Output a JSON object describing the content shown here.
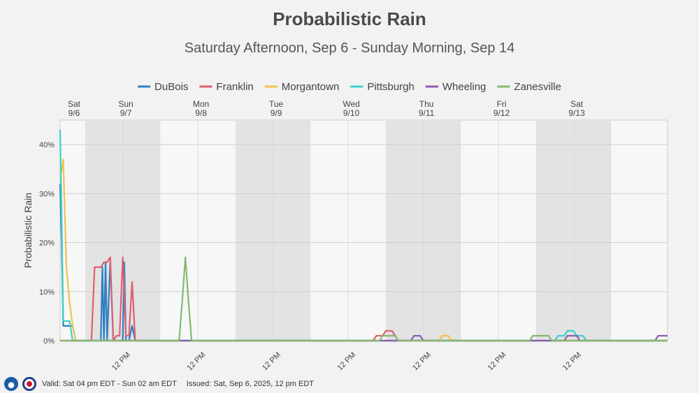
{
  "header": {
    "title": "Probabilistic Rain",
    "subtitle": "Saturday Afternoon, Sep 6 - Sunday Morning, Sep 14"
  },
  "footer": {
    "valid": "Valid: Sat 04 pm EDT - Sun 02 am EDT",
    "issued": "Issued: Sat, Sep 6, 2025, 12 pm EDT"
  },
  "chart_data": {
    "type": "line",
    "ylabel": "Probabilistic Rain",
    "ylim": [
      0,
      45
    ],
    "yticks": [
      0,
      10,
      20,
      30,
      40
    ],
    "ytick_labels": [
      "0%",
      "10%",
      "20%",
      "30%",
      "40%"
    ],
    "x_unit": "hours after Sat 9/6 12 AM EDT",
    "xlim": [
      16,
      210
    ],
    "days": [
      {
        "weekday": "Sat",
        "date": "9/6",
        "center": 16
      },
      {
        "weekday": "Sun",
        "date": "9/7",
        "center": 37
      },
      {
        "weekday": "Mon",
        "date": "9/8",
        "center": 61
      },
      {
        "weekday": "Tue",
        "date": "9/9",
        "center": 85
      },
      {
        "weekday": "Wed",
        "date": "9/10",
        "center": 109
      },
      {
        "weekday": "Thu",
        "date": "9/11",
        "center": 133
      },
      {
        "weekday": "Fri",
        "date": "9/12",
        "center": 157
      },
      {
        "weekday": "Sat",
        "date": "9/13",
        "center": 181
      }
    ],
    "night_bands": [
      [
        24,
        48
      ],
      [
        72,
        96
      ],
      [
        120,
        144
      ],
      [
        168,
        192
      ]
    ],
    "xtick_positions": [
      36,
      60,
      84,
      108,
      132,
      156,
      180
    ],
    "xtick_label": "12 PM",
    "grid": true,
    "legend_position": "top",
    "series": [
      {
        "name": "DuBois",
        "color": "#2f7fc1",
        "points": [
          [
            16,
            32
          ],
          [
            16.5,
            20
          ],
          [
            17,
            3
          ],
          [
            18,
            3
          ],
          [
            19,
            3
          ],
          [
            20,
            3
          ],
          [
            21,
            0
          ],
          [
            26,
            0
          ],
          [
            27,
            0
          ],
          [
            28,
            0
          ],
          [
            29,
            0
          ],
          [
            29.5,
            15
          ],
          [
            30,
            0
          ],
          [
            30.5,
            16
          ],
          [
            31,
            0
          ],
          [
            32,
            16
          ],
          [
            33,
            0
          ],
          [
            36,
            0
          ],
          [
            36.5,
            16
          ],
          [
            37,
            0
          ],
          [
            38,
            0
          ],
          [
            39,
            3
          ],
          [
            40,
            0
          ],
          [
            210,
            0
          ]
        ]
      },
      {
        "name": "Franklin",
        "color": "#e06070",
        "points": [
          [
            16,
            0
          ],
          [
            26,
            0
          ],
          [
            27,
            15
          ],
          [
            28,
            15
          ],
          [
            29,
            15
          ],
          [
            30,
            16
          ],
          [
            31,
            16
          ],
          [
            32,
            17
          ],
          [
            33,
            0
          ],
          [
            34,
            1
          ],
          [
            35,
            1
          ],
          [
            36,
            17
          ],
          [
            37,
            1
          ],
          [
            38,
            1
          ],
          [
            39,
            12
          ],
          [
            40,
            0
          ],
          [
            115,
            0
          ],
          [
            116,
            0
          ],
          [
            117,
            1
          ],
          [
            118,
            1
          ],
          [
            119,
            1
          ],
          [
            120,
            2
          ],
          [
            121,
            2
          ],
          [
            122,
            2
          ],
          [
            123,
            1
          ],
          [
            124,
            0
          ],
          [
            210,
            0
          ]
        ]
      },
      {
        "name": "Morgantown",
        "color": "#f2c14e",
        "points": [
          [
            16,
            33
          ],
          [
            17,
            37
          ],
          [
            18,
            15
          ],
          [
            19,
            8
          ],
          [
            20,
            3
          ],
          [
            21,
            0
          ],
          [
            137,
            0
          ],
          [
            138,
            1
          ],
          [
            139,
            1
          ],
          [
            140,
            1
          ],
          [
            141,
            0
          ],
          [
            210,
            0
          ]
        ]
      },
      {
        "name": "Pittsburgh",
        "color": "#3fd0c8",
        "points": [
          [
            16,
            43
          ],
          [
            16.5,
            25
          ],
          [
            17,
            4
          ],
          [
            18,
            4
          ],
          [
            19,
            4
          ],
          [
            20,
            0
          ],
          [
            174,
            0
          ],
          [
            175,
            1
          ],
          [
            176,
            1
          ],
          [
            177,
            1
          ],
          [
            178,
            2
          ],
          [
            179,
            2
          ],
          [
            180,
            2
          ],
          [
            181,
            1
          ],
          [
            182,
            1
          ],
          [
            183,
            1
          ],
          [
            184,
            0
          ],
          [
            210,
            0
          ]
        ]
      },
      {
        "name": "Wheeling",
        "color": "#8a5fb0",
        "points": [
          [
            16,
            0
          ],
          [
            128,
            0
          ],
          [
            129,
            1
          ],
          [
            130,
            1
          ],
          [
            131,
            1
          ],
          [
            132,
            0
          ],
          [
            177,
            0
          ],
          [
            178,
            1
          ],
          [
            179,
            1
          ],
          [
            180,
            1
          ],
          [
            181,
            1
          ],
          [
            182,
            0
          ],
          [
            206,
            0
          ],
          [
            207,
            1
          ],
          [
            208,
            1
          ],
          [
            209,
            1
          ],
          [
            210,
            1
          ]
        ]
      },
      {
        "name": "Zanesville",
        "color": "#86b86f",
        "points": [
          [
            16,
            0
          ],
          [
            54,
            0
          ],
          [
            55,
            8
          ],
          [
            56,
            17
          ],
          [
            57,
            8
          ],
          [
            58,
            0
          ],
          [
            118,
            0
          ],
          [
            119,
            1
          ],
          [
            120,
            1
          ],
          [
            121,
            1
          ],
          [
            122,
            1
          ],
          [
            123,
            1
          ],
          [
            124,
            0
          ],
          [
            166,
            0
          ],
          [
            167,
            1
          ],
          [
            168,
            1
          ],
          [
            169,
            1
          ],
          [
            170,
            1
          ],
          [
            171,
            1
          ],
          [
            172,
            1
          ],
          [
            173,
            0
          ],
          [
            210,
            0
          ]
        ]
      }
    ]
  }
}
